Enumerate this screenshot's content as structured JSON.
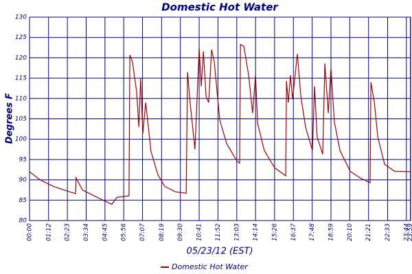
{
  "chart_data": {
    "type": "line",
    "title": "Domestic Hot Water",
    "xlabel": "05/23/12 (EST)",
    "ylabel": "Degrees F",
    "x": [
      0,
      40,
      90,
      140,
      174,
      176,
      200,
      278,
      311,
      330,
      376,
      379,
      389,
      405,
      413,
      420,
      428,
      439,
      459,
      485,
      511,
      550,
      592,
      597,
      607,
      625,
      633,
      641,
      649,
      657,
      667,
      677,
      688,
      698,
      719,
      745,
      784,
      794,
      797,
      810,
      828,
      843,
      854,
      862,
      887,
      926,
      968,
      971,
      978,
      986,
      994,
      1004,
      1012,
      1025,
      1043,
      1069,
      1077,
      1087,
      1108,
      1116,
      1129,
      1139,
      1152,
      1173,
      1212,
      1251,
      1287,
      1290,
      1303,
      1316,
      1342,
      1380,
      1440
    ],
    "series": [
      {
        "name": "Domestic Hot Water",
        "color": "#990000",
        "values": [
          92.0,
          90.0,
          88.4,
          87.3,
          86.6,
          90.5,
          87.5,
          85.0,
          84.0,
          85.7,
          86.1,
          120.7,
          119.0,
          111.5,
          103.0,
          115.0,
          101.4,
          109.0,
          97.0,
          91.3,
          88.4,
          87.1,
          86.7,
          116.5,
          109.0,
          97.5,
          110.0,
          122.4,
          113.0,
          121.6,
          110.6,
          109.0,
          122.0,
          119.0,
          104.7,
          98.9,
          94.6,
          94.1,
          123.3,
          122.8,
          115.7,
          106.4,
          115.7,
          103.9,
          97.2,
          93.0,
          91.0,
          114.3,
          109.0,
          115.7,
          109.8,
          116.0,
          121.0,
          110.6,
          103.0,
          97.2,
          113.0,
          100.5,
          96.3,
          118.6,
          106.4,
          117.4,
          104.2,
          97.2,
          92.1,
          90.4,
          89.3,
          114.0,
          109.0,
          100.5,
          93.8,
          92.1,
          92.0
        ]
      }
    ],
    "xlim": [
      0,
      1440
    ],
    "xticks": [
      {
        "value": 0,
        "label": "00:00"
      },
      {
        "value": 72,
        "label": "01:12"
      },
      {
        "value": 143,
        "label": "02:23"
      },
      {
        "value": 214,
        "label": "03:34"
      },
      {
        "value": 285,
        "label": "04:45"
      },
      {
        "value": 356,
        "label": "05:56"
      },
      {
        "value": 427,
        "label": "07:07"
      },
      {
        "value": 499,
        "label": "08:19"
      },
      {
        "value": 570,
        "label": "09:30"
      },
      {
        "value": 641,
        "label": "10:41"
      },
      {
        "value": 712,
        "label": "11:52"
      },
      {
        "value": 783,
        "label": "13:03"
      },
      {
        "value": 854,
        "label": "14:14"
      },
      {
        "value": 926,
        "label": "15:26"
      },
      {
        "value": 997,
        "label": "16:37"
      },
      {
        "value": 1068,
        "label": "17:48"
      },
      {
        "value": 1139,
        "label": "18:59"
      },
      {
        "value": 1210,
        "label": "20:10"
      },
      {
        "value": 1281,
        "label": "21:21"
      },
      {
        "value": 1353,
        "label": "22:33"
      },
      {
        "value": 1424,
        "label": "23:44"
      },
      {
        "value": 1439,
        "label": "23:59"
      }
    ],
    "ylim": [
      80,
      130
    ],
    "yticks": [
      80,
      85,
      90,
      95,
      100,
      105,
      110,
      115,
      120,
      125,
      130
    ],
    "grid": true
  }
}
